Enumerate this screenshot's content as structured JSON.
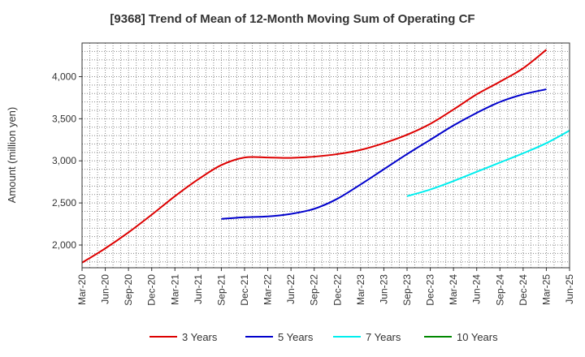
{
  "chart_data": {
    "type": "line",
    "title": "[9368]  Trend of Mean of 12-Month Moving Sum of Operating CF",
    "xlabel": "",
    "ylabel": "Amount (million yen)",
    "ylim": [
      1730,
      4400
    ],
    "yticks": [
      2000,
      2500,
      3000,
      3500,
      4000
    ],
    "ytick_labels": [
      "2,000",
      "2,500",
      "3,000",
      "3,500",
      "4,000"
    ],
    "xticks": [
      "Mar-20",
      "Jun-20",
      "Sep-20",
      "Dec-20",
      "Mar-21",
      "Jun-21",
      "Sep-21",
      "Dec-21",
      "Mar-22",
      "Jun-22",
      "Sep-22",
      "Dec-22",
      "Mar-23",
      "Jun-23",
      "Sep-23",
      "Dec-23",
      "Mar-24",
      "Jun-24",
      "Sep-24",
      "Dec-24",
      "Mar-25",
      "Jun-25"
    ],
    "grid": true,
    "legend_position": "bottom",
    "series": [
      {
        "name": "3 Years",
        "color": "#dd0000",
        "start_index": 0,
        "values": [
          1790,
          1960,
          2150,
          2360,
          2580,
          2780,
          2950,
          3040,
          3040,
          3035,
          3050,
          3080,
          3130,
          3210,
          3310,
          3440,
          3610,
          3790,
          3940,
          4100,
          4320
        ]
      },
      {
        "name": "5 Years",
        "color": "#0000cc",
        "start_index": 6,
        "values": [
          2310,
          2330,
          2340,
          2370,
          2430,
          2550,
          2720,
          2900,
          3080,
          3250,
          3420,
          3570,
          3700,
          3790,
          3850
        ]
      },
      {
        "name": "7 Years",
        "color": "#00eeee",
        "start_index": 14,
        "values": [
          2580,
          2660,
          2760,
          2870,
          2980,
          3090,
          3210,
          3360
        ]
      },
      {
        "name": "10 Years",
        "color": "#008800",
        "start_index": 0,
        "values": []
      }
    ]
  }
}
